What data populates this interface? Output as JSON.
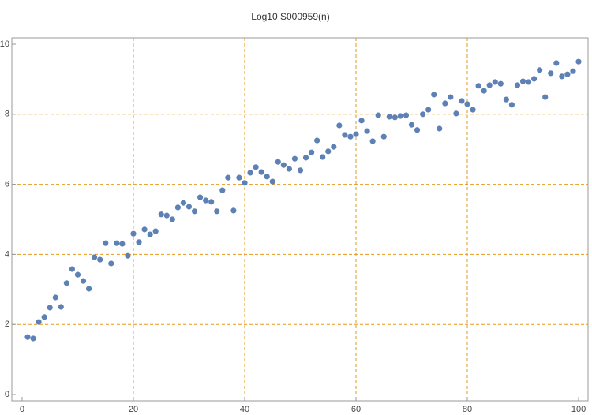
{
  "chart_data": {
    "type": "scatter",
    "title": "Log10 S000959(n)",
    "x": [
      1,
      2,
      3,
      4,
      5,
      6,
      7,
      8,
      9,
      10,
      11,
      12,
      13,
      14,
      15,
      16,
      17,
      18,
      19,
      20,
      21,
      22,
      23,
      24,
      25,
      26,
      27,
      28,
      29,
      30,
      31,
      32,
      33,
      34,
      35,
      36,
      37,
      38,
      39,
      40,
      41,
      42,
      43,
      44,
      45,
      46,
      47,
      48,
      49,
      50,
      51,
      52,
      53,
      54,
      55,
      56,
      57,
      58,
      59,
      60,
      61,
      62,
      63,
      64,
      65,
      66,
      67,
      68,
      69,
      70,
      71,
      72,
      73,
      74,
      75,
      76,
      77,
      78,
      79,
      80,
      81,
      82,
      83,
      84,
      85,
      86,
      87,
      88,
      89,
      90,
      91,
      92,
      93,
      94,
      95,
      96,
      97,
      98,
      99,
      100
    ],
    "values": [
      1.64,
      1.6,
      2.07,
      2.21,
      2.48,
      2.77,
      2.5,
      3.18,
      3.58,
      3.42,
      3.24,
      3.02,
      3.92,
      3.85,
      4.32,
      3.74,
      4.32,
      4.3,
      3.96,
      4.59,
      4.35,
      4.71,
      4.57,
      4.66,
      5.14,
      5.11,
      5.0,
      5.34,
      5.47,
      5.36,
      5.23,
      5.63,
      5.54,
      5.5,
      5.23,
      5.83,
      6.19,
      5.25,
      6.19,
      6.04,
      6.33,
      6.49,
      6.35,
      6.22,
      6.08,
      6.64,
      6.55,
      6.44,
      6.73,
      6.4,
      6.76,
      6.91,
      7.25,
      6.78,
      6.94,
      7.07,
      7.68,
      7.41,
      7.36,
      7.43,
      7.82,
      7.52,
      7.23,
      7.97,
      7.36,
      7.93,
      7.91,
      7.95,
      7.97,
      7.7,
      7.55,
      8.0,
      8.13,
      8.56,
      7.59,
      8.31,
      8.49,
      8.02,
      8.38,
      8.29,
      8.13,
      8.81,
      8.67,
      8.83,
      8.92,
      8.87,
      8.42,
      8.27,
      8.83,
      8.94,
      8.92,
      9.01,
      9.26,
      8.49,
      9.17,
      9.46,
      9.08,
      9.14,
      9.23,
      9.5
    ],
    "color": "#5e81b5",
    "xlim": [
      -1.84,
      101.7
    ],
    "ylim": [
      -0.18,
      10.18
    ],
    "xticks": [
      0,
      20,
      40,
      60,
      80,
      100
    ],
    "yticks": [
      0,
      2,
      4,
      6,
      8,
      10
    ],
    "grid_x": [
      20,
      40,
      60,
      80
    ],
    "grid_y": [
      2,
      4,
      6,
      8
    ],
    "grid_color": "#e69a1f"
  }
}
